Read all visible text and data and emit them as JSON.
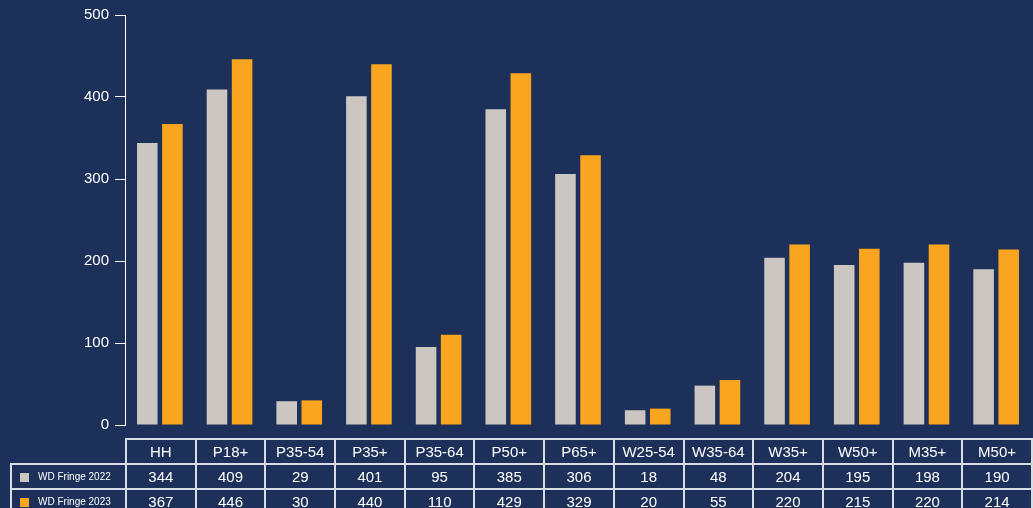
{
  "chart_data": {
    "type": "bar",
    "categories": [
      "HH",
      "P18+",
      "P35-54",
      "P35+",
      "P35-64",
      "P50+",
      "P65+",
      "W25-54",
      "W35-64",
      "W35+",
      "W50+",
      "M35+",
      "M50+"
    ],
    "series": [
      {
        "name": "WD Fringe 2022",
        "color": "#cbc6c2",
        "values": [
          344,
          409,
          29,
          401,
          95,
          385,
          306,
          18,
          48,
          204,
          195,
          198,
          190
        ]
      },
      {
        "name": "WD Fringe 2023",
        "color": "#f9a51f",
        "values": [
          367,
          446,
          30,
          440,
          110,
          429,
          329,
          20,
          55,
          220,
          215,
          220,
          214
        ]
      }
    ],
    "ylim": [
      0,
      500
    ],
    "yticks": [
      0,
      100,
      200,
      300,
      400,
      500
    ],
    "grid": false,
    "legend": "bottom left",
    "data_labels": true
  }
}
